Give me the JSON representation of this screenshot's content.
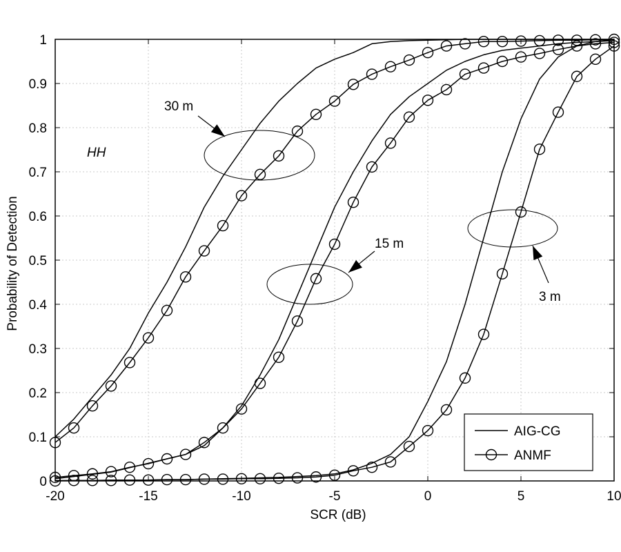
{
  "chart_data": {
    "type": "line",
    "xlabel": "SCR (dB)",
    "ylabel": "Probability of Detection",
    "xlim": [
      -20,
      10
    ],
    "ylim": [
      0,
      1
    ],
    "x_ticks": [
      -20,
      -15,
      -10,
      -5,
      0,
      5,
      10
    ],
    "y_ticks": [
      0,
      0.1,
      0.2,
      0.3,
      0.4,
      0.5,
      0.6,
      0.7,
      0.8,
      0.9,
      1
    ],
    "grid": true,
    "legend_position": "bottom-right",
    "legend": [
      {
        "label": "AIG-CG",
        "marker": "none"
      },
      {
        "label": "ANMF",
        "marker": "circle"
      }
    ],
    "annotations": {
      "polarization": "HH",
      "label_30": "30 m",
      "label_15": "15 m",
      "label_3": "3 m"
    },
    "x": [
      -20,
      -19,
      -18,
      -17,
      -16,
      -15,
      -14,
      -13,
      -12,
      -11,
      -10,
      -9,
      -8,
      -7,
      -6,
      -5,
      -4,
      -3,
      -2,
      -1,
      0,
      1,
      2,
      3,
      4,
      5,
      6,
      7,
      8,
      9,
      10
    ],
    "series": [
      {
        "group": "30 m",
        "legend": "AIG-CG",
        "marker": "none",
        "values": [
          0.1,
          0.14,
          0.19,
          0.24,
          0.3,
          0.38,
          0.45,
          0.53,
          0.62,
          0.69,
          0.75,
          0.81,
          0.86,
          0.9,
          0.935,
          0.955,
          0.97,
          0.99,
          0.995,
          0.997,
          0.998,
          0.999,
          1.0,
          1.0,
          1.0,
          1.0,
          1.0,
          1.0,
          1.0,
          1.0,
          1.0
        ]
      },
      {
        "group": "30 m",
        "legend": "ANMF",
        "marker": "circle",
        "values": [
          0.087,
          0.12,
          0.17,
          0.215,
          0.268,
          0.324,
          0.386,
          0.462,
          0.521,
          0.578,
          0.646,
          0.694,
          0.736,
          0.792,
          0.83,
          0.86,
          0.898,
          0.921,
          0.938,
          0.953,
          0.97,
          0.985,
          0.99,
          0.995,
          0.995,
          0.996,
          0.997,
          0.998,
          0.998,
          0.999,
          1.0
        ]
      },
      {
        "group": "15 m",
        "legend": "AIG-CG",
        "marker": "none",
        "values": [
          0.005,
          0.01,
          0.015,
          0.02,
          0.03,
          0.04,
          0.05,
          0.06,
          0.08,
          0.12,
          0.17,
          0.24,
          0.32,
          0.42,
          0.52,
          0.62,
          0.7,
          0.77,
          0.83,
          0.87,
          0.9,
          0.93,
          0.95,
          0.965,
          0.975,
          0.98,
          0.985,
          0.99,
          0.993,
          0.995,
          0.997
        ]
      },
      {
        "group": "15 m",
        "legend": "ANMF",
        "marker": "circle",
        "values": [
          0.008,
          0.012,
          0.016,
          0.021,
          0.031,
          0.039,
          0.05,
          0.06,
          0.087,
          0.12,
          0.163,
          0.221,
          0.28,
          0.362,
          0.458,
          0.536,
          0.631,
          0.711,
          0.765,
          0.824,
          0.862,
          0.886,
          0.921,
          0.935,
          0.95,
          0.96,
          0.968,
          0.977,
          0.985,
          0.99,
          0.993
        ]
      },
      {
        "group": "3 m",
        "legend": "AIG-CG",
        "marker": "none",
        "values": [
          0.001,
          0.001,
          0.001,
          0.002,
          0.002,
          0.002,
          0.003,
          0.003,
          0.004,
          0.005,
          0.006,
          0.007,
          0.008,
          0.01,
          0.012,
          0.016,
          0.025,
          0.04,
          0.06,
          0.1,
          0.18,
          0.27,
          0.4,
          0.55,
          0.7,
          0.82,
          0.91,
          0.96,
          0.985,
          0.995,
          1.0
        ]
      },
      {
        "group": "3 m",
        "legend": "ANMF",
        "marker": "circle",
        "values": [
          0.0,
          0.001,
          0.001,
          0.001,
          0.002,
          0.002,
          0.003,
          0.003,
          0.004,
          0.004,
          0.005,
          0.005,
          0.006,
          0.007,
          0.009,
          0.013,
          0.023,
          0.031,
          0.043,
          0.078,
          0.114,
          0.161,
          0.233,
          0.332,
          0.469,
          0.609,
          0.751,
          0.835,
          0.916,
          0.955,
          0.985
        ]
      }
    ]
  }
}
